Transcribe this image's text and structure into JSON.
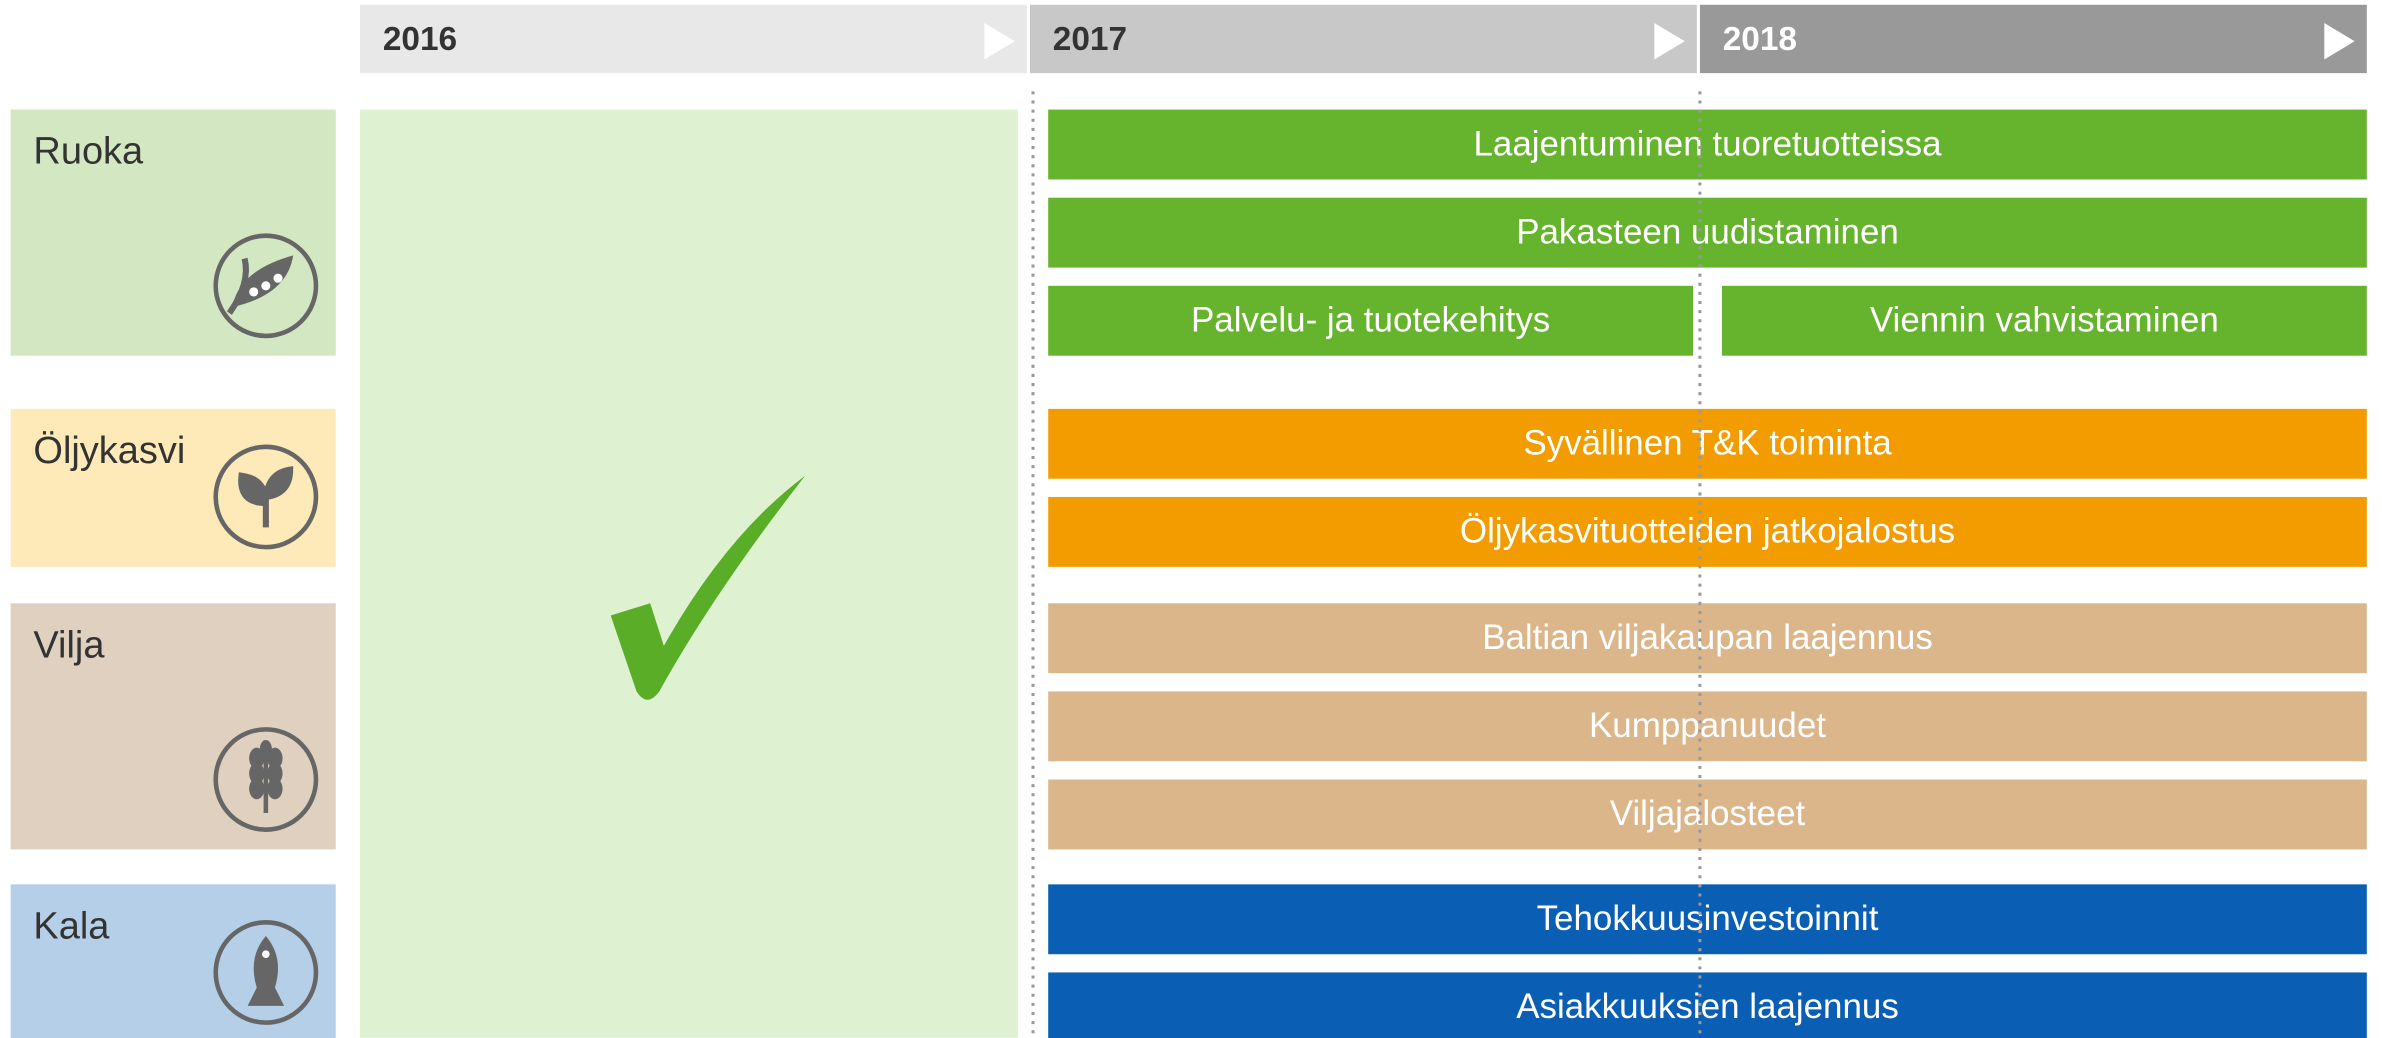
{
  "timeline": {
    "years": [
      "2016",
      "2017",
      "2018"
    ]
  },
  "rows": [
    {
      "label": "Ruoka",
      "color": "#66b32e",
      "box_color": "#d3e8c2",
      "lines": [
        [
          "Laajentuminen tuoretuotteissa"
        ],
        [
          "Pakasteen uudistaminen"
        ],
        [
          "Palvelu- ja tuotekehitys",
          "Viennin vahvistaminen"
        ]
      ]
    },
    {
      "label": "Öljykasvi",
      "color": "#f39c00",
      "box_color": "#fdeab8",
      "lines": [
        [
          "Syvällinen T&K toiminta"
        ],
        [
          "Öljykasvituotteiden jatkojalostus"
        ]
      ]
    },
    {
      "label": "Vilja",
      "color": "#dcb68b",
      "box_color": "#e0d0c0",
      "lines": [
        [
          "Baltian viljakaupan laajennus"
        ],
        [
          "Kumppanuudet"
        ],
        [
          "Viljajalosteet"
        ]
      ]
    },
    {
      "label": "Kala",
      "color": "#0a5fb4",
      "box_color": "#b6cfe8",
      "lines": [
        [
          "Tehokkuusinvestoinnit"
        ],
        [
          "Asiakkuuksien laajennus"
        ]
      ]
    }
  ]
}
